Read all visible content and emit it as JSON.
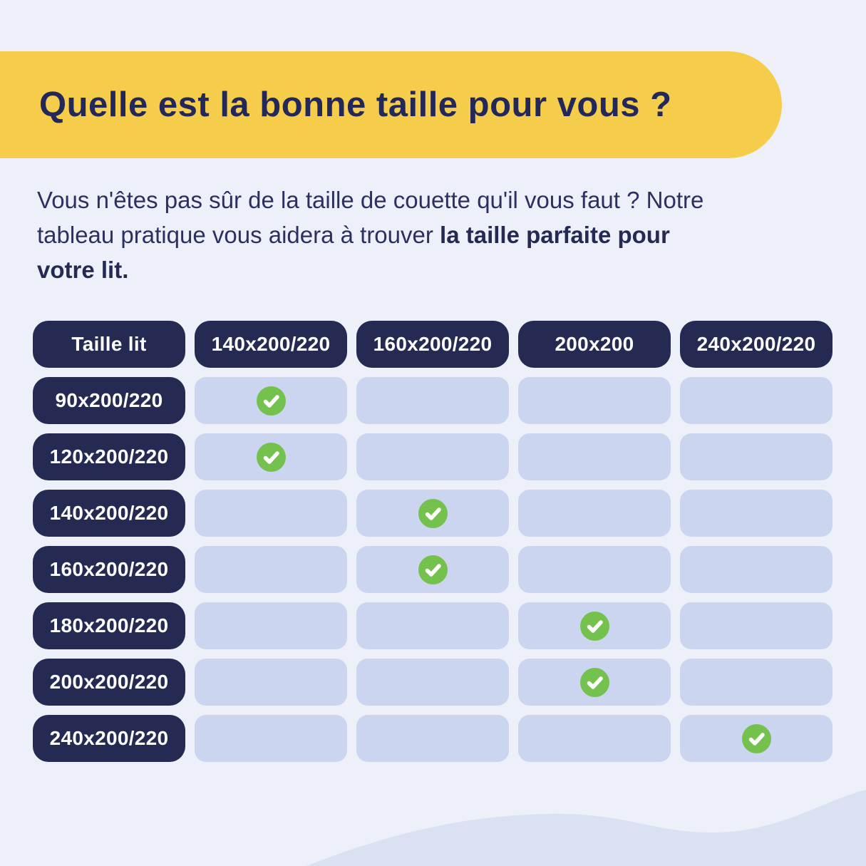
{
  "header": {
    "title": "Quelle est la bonne taille pour vous ?"
  },
  "intro": {
    "regular": "Vous n'êtes pas sûr de la taille de couette qu'il vous faut ? Notre tableau pratique vous aidera à trouver ",
    "bold": "la taille parfaite pour votre lit."
  },
  "table": {
    "header_label": "Taille lit",
    "columns": [
      "140x200/220",
      "160x200/220",
      "200x200",
      "240x200/220"
    ],
    "rows": [
      {
        "label": "90x200/220",
        "checks": [
          true,
          false,
          false,
          false
        ]
      },
      {
        "label": "120x200/220",
        "checks": [
          true,
          false,
          false,
          false
        ]
      },
      {
        "label": "140x200/220",
        "checks": [
          false,
          true,
          false,
          false
        ]
      },
      {
        "label": "160x200/220",
        "checks": [
          false,
          true,
          false,
          false
        ]
      },
      {
        "label": "180x200/220",
        "checks": [
          false,
          false,
          true,
          false
        ]
      },
      {
        "label": "200x200/220",
        "checks": [
          false,
          false,
          true,
          false
        ]
      },
      {
        "label": "240x200/220",
        "checks": [
          false,
          false,
          false,
          true
        ]
      }
    ]
  },
  "icons": {
    "check": "check-circle-icon"
  },
  "colors": {
    "background": "#edf0f9",
    "banner_yellow": "#f5cd4b",
    "navy": "#252a53",
    "text_navy": "#2b3060",
    "cell_lavender": "#cbd5f0",
    "check_green": "#74c24d",
    "wave": "#dae1f3"
  }
}
